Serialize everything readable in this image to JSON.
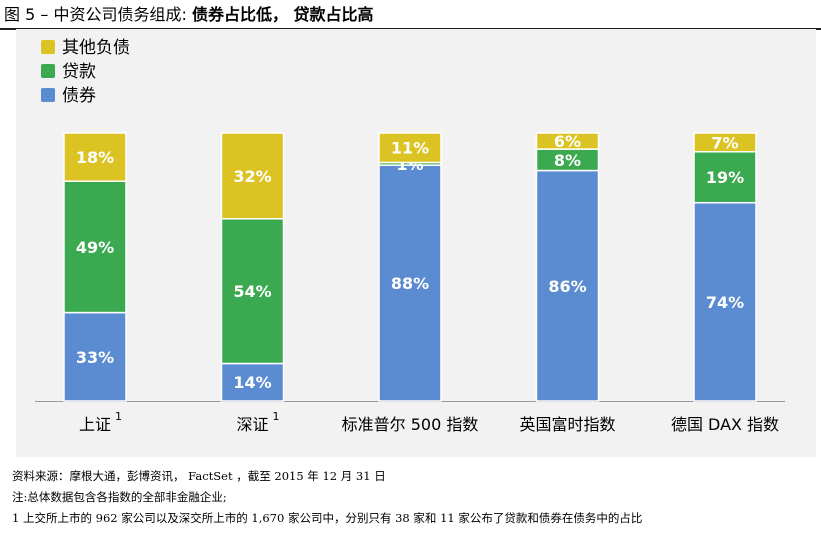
{
  "figure": {
    "label": "图 5 – 中资公司债务组成:",
    "headline": "债券占比低， 贷款占比高"
  },
  "colors": {
    "bonds": "#5b8bd0",
    "loans": "#3ba94f",
    "other": "#dcc324",
    "panel": "#f2f2f2",
    "label_text": "#ffffff"
  },
  "chart_data": {
    "type": "bar",
    "stacked": true,
    "categories": [
      "上证",
      "深证",
      "标准普尔 500 指数",
      "英国富时指数",
      "德国 DAX 指数"
    ],
    "category_superscripts": [
      "1",
      "1",
      "",
      "",
      ""
    ],
    "series": [
      {
        "name": "债券",
        "color_key": "bonds",
        "values": [
          33,
          14,
          88,
          86,
          74
        ],
        "labels": [
          "33%",
          "14%",
          "88%",
          "86%",
          "74%"
        ]
      },
      {
        "name": "贷款",
        "color_key": "loans",
        "values": [
          49,
          54,
          1,
          8,
          19
        ],
        "labels": [
          "49%",
          "54%",
          "1%",
          "8%",
          "19%"
        ]
      },
      {
        "name": "其他负债",
        "color_key": "other",
        "values": [
          18,
          32,
          11,
          6,
          7
        ],
        "labels": [
          "18%",
          "32%",
          "11%",
          "6%",
          "7%"
        ]
      }
    ],
    "legend": [
      "其他负债",
      "贷款",
      "债券"
    ],
    "legend_position": "top-left",
    "ylim": [
      0,
      100
    ],
    "unit": "%",
    "title": "",
    "xlabel": "",
    "ylabel": ""
  },
  "footer": {
    "source": "资料来源：摩根大通，彭博资讯， FactSet ，截至 2015 年 12 月 31 日",
    "note": "注:总体数据包含各指数的全部非金融企业;",
    "footnote": "1 上交所上市的 962 家公司以及深交所上市的 1,670 家公司中，分别只有 38 家和 11 家公布了贷款和债券在债务中的占比"
  }
}
